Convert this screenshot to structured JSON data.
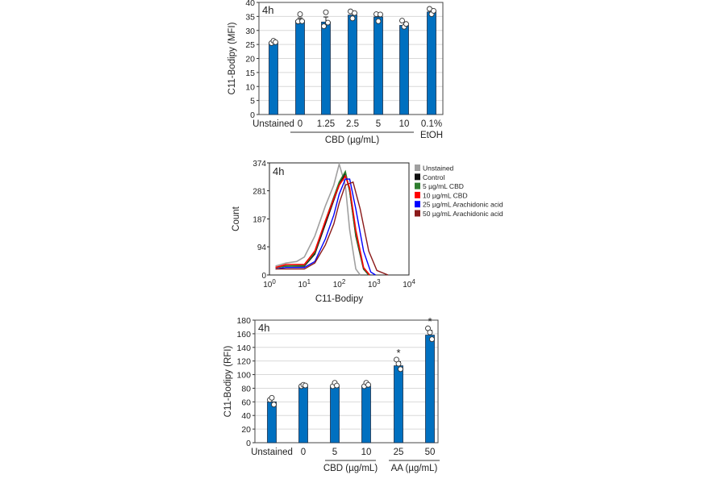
{
  "chart_data": [
    {
      "type": "bar",
      "panel_label": "4h",
      "ylabel": "C11-Bodipy (MFI)",
      "ylim": [
        0,
        40
      ],
      "yticks": [
        0,
        5,
        10,
        15,
        20,
        25,
        30,
        35,
        40
      ],
      "grid": true,
      "categories": [
        "Unstained",
        "0",
        "1.25",
        "2.5",
        "5",
        "10",
        "0.1%"
      ],
      "category_sublabels": {
        "6": "EtOH"
      },
      "group_labels": [
        {
          "label": "CBD (µg/mL)",
          "from": 1,
          "to": 5
        }
      ],
      "values": [
        25.7,
        33.5,
        33.0,
        35.5,
        34.8,
        31.8,
        36.6
      ],
      "errors": [
        0.5,
        1.0,
        1.8,
        0.8,
        0.8,
        1.0,
        0.6
      ],
      "points": [
        [
          25.5,
          26.3,
          25.8
        ],
        [
          33.2,
          35.8,
          33.3
        ],
        [
          31.5,
          36.5,
          32.8
        ],
        [
          36.8,
          34.3,
          36.2
        ],
        [
          35.8,
          33.3,
          35.7
        ],
        [
          33.5,
          31.3,
          32.3
        ],
        [
          37.7,
          35.8,
          37.0
        ]
      ],
      "bar_color": "#0070c0"
    },
    {
      "type": "line",
      "subtype": "histogram",
      "panel_label": "4h",
      "xlabel": "C11-Bodipy",
      "ylabel": "Count",
      "xscale": "log",
      "xlim": [
        1,
        10000
      ],
      "ylim": [
        0,
        374
      ],
      "xticks": [
        "10^0",
        "10^1",
        "10^2",
        "10^3",
        "10^4"
      ],
      "yticks": [
        0,
        94,
        187,
        281,
        374
      ],
      "legend_position": "right",
      "series": [
        {
          "name": "Unstained",
          "color": "#a0a0a0",
          "x": [
            1.5,
            3,
            6,
            10,
            20,
            40,
            70,
            100,
            150,
            200,
            300,
            400
          ],
          "y": [
            30,
            40,
            45,
            60,
            130,
            230,
            300,
            370,
            300,
            150,
            20,
            0
          ]
        },
        {
          "name": "Control",
          "color": "#111111",
          "x": [
            1.5,
            3,
            10,
            20,
            40,
            70,
            100,
            150,
            200,
            300,
            500,
            700
          ],
          "y": [
            25,
            30,
            30,
            70,
            170,
            250,
            300,
            340,
            280,
            130,
            20,
            0
          ]
        },
        {
          "name": "5 µg/mL CBD",
          "color": "#2e7d2e",
          "x": [
            1.5,
            3,
            10,
            20,
            40,
            70,
            100,
            150,
            200,
            300,
            500,
            700
          ],
          "y": [
            25,
            30,
            32,
            75,
            180,
            260,
            310,
            345,
            280,
            135,
            22,
            0
          ]
        },
        {
          "name": "10 µg/mL CBD",
          "color": "#ff0000",
          "x": [
            1.5,
            3,
            10,
            20,
            40,
            70,
            100,
            150,
            200,
            300,
            500,
            750
          ],
          "y": [
            25,
            35,
            35,
            80,
            180,
            255,
            300,
            330,
            290,
            150,
            25,
            0
          ]
        },
        {
          "name": "25 µg/mL Arachidonic acid",
          "color": "#0000ff",
          "x": [
            1.5,
            3,
            10,
            20,
            40,
            70,
            100,
            150,
            200,
            300,
            500,
            800,
            1100
          ],
          "y": [
            20,
            25,
            25,
            45,
            120,
            200,
            270,
            320,
            320,
            220,
            80,
            10,
            0
          ]
        },
        {
          "name": "50 µg/mL Arachidonic acid",
          "color": "#8b1a1a",
          "x": [
            1.5,
            3,
            10,
            20,
            40,
            70,
            100,
            150,
            250,
            400,
            700,
            1200,
            2500
          ],
          "y": [
            20,
            20,
            20,
            40,
            100,
            170,
            240,
            300,
            310,
            220,
            80,
            15,
            0
          ]
        }
      ]
    },
    {
      "type": "bar",
      "panel_label": "4h",
      "ylabel": "C11-Bodipy (RFI)",
      "ylim": [
        0,
        180
      ],
      "yticks": [
        0,
        20,
        40,
        60,
        80,
        100,
        120,
        140,
        160,
        180
      ],
      "grid": true,
      "categories": [
        "Unstained",
        "0",
        "5",
        "10",
        "25",
        "50"
      ],
      "group_labels": [
        {
          "label": "CBD (µg/mL)",
          "from": 2,
          "to": 3
        },
        {
          "label": "AA (µg/mL)",
          "from": 4,
          "to": 5
        }
      ],
      "values": [
        60,
        82,
        82,
        83,
        113,
        158
      ],
      "errors": [
        4,
        1.5,
        3,
        3,
        6,
        7
      ],
      "points": [
        [
          63,
          66,
          56
        ],
        [
          83,
          85,
          84
        ],
        [
          83,
          88,
          84
        ],
        [
          83,
          88,
          85
        ],
        [
          122,
          116,
          108
        ],
        [
          168,
          162,
          152
        ]
      ],
      "significance": [
        "",
        "",
        "",
        "",
        "*",
        "*"
      ],
      "bar_color": "#0070c0"
    }
  ]
}
